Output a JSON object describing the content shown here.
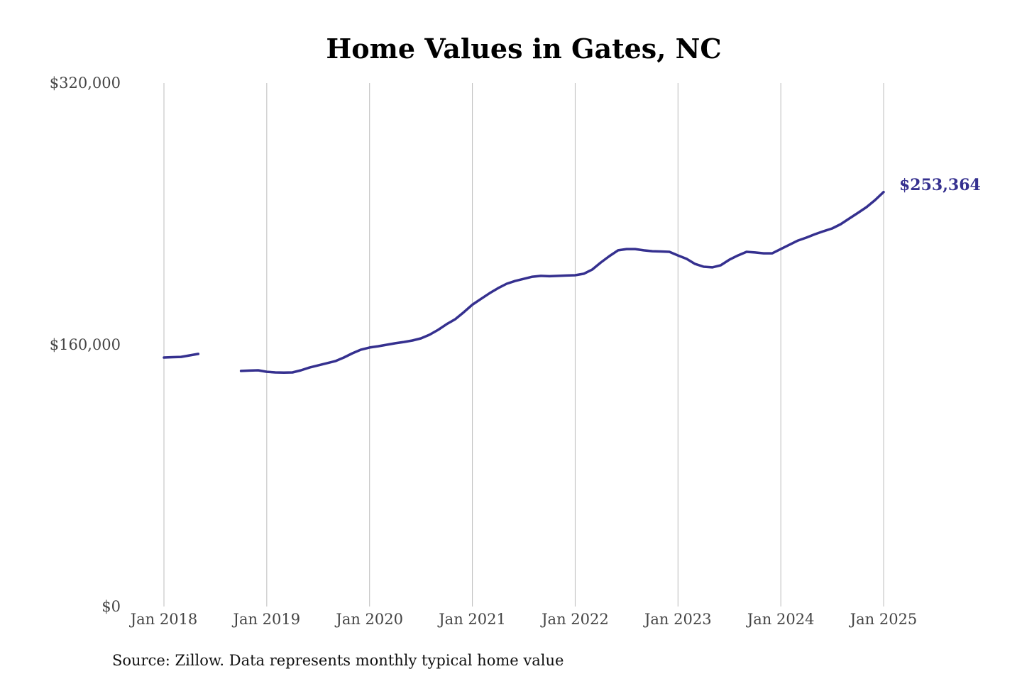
{
  "chart_data": {
    "type": "line",
    "title": "Home Values in Gates, NC",
    "xlabel": "",
    "ylabel": "",
    "ylim": [
      0,
      320000
    ],
    "yticks": [
      0,
      160000,
      320000
    ],
    "ytick_labels": [
      "$0",
      "$160,000",
      "$320,000"
    ],
    "xticks": [
      "Jan 2018",
      "Jan 2019",
      "Jan 2020",
      "Jan 2021",
      "Jan 2022",
      "Jan 2023",
      "Jan 2024",
      "Jan 2025"
    ],
    "grid": "vertical",
    "legend": "none",
    "series": [
      {
        "name": "Typical home value",
        "color": "#35308f",
        "start": "2018-01",
        "frequency": "monthly",
        "values": [
          152200,
          152400,
          152600,
          153500,
          154400,
          null,
          null,
          null,
          null,
          144000,
          144200,
          144400,
          143500,
          143100,
          143000,
          143100,
          144400,
          146100,
          147400,
          148700,
          150000,
          152200,
          154800,
          157000,
          158300,
          159100,
          160000,
          160900,
          161700,
          162600,
          163900,
          166100,
          169100,
          172600,
          175600,
          179900,
          184500,
          188000,
          191500,
          194600,
          197300,
          199000,
          200300,
          201600,
          202100,
          201900,
          202100,
          202300,
          202500,
          203400,
          206000,
          210300,
          214200,
          217700,
          218500,
          218500,
          217700,
          217200,
          217000,
          216800,
          214600,
          212500,
          209400,
          207700,
          207300,
          208600,
          212000,
          214600,
          216800,
          216400,
          215900,
          215900,
          218500,
          221100,
          223700,
          225500,
          227600,
          229400,
          231100,
          233700,
          237200,
          240600,
          244100,
          248400,
          253364
        ]
      }
    ],
    "annotations": [
      {
        "text": "$253,364",
        "at": "2025-01"
      }
    ],
    "source": "Source: Zillow. Data represents monthly typical home value"
  }
}
